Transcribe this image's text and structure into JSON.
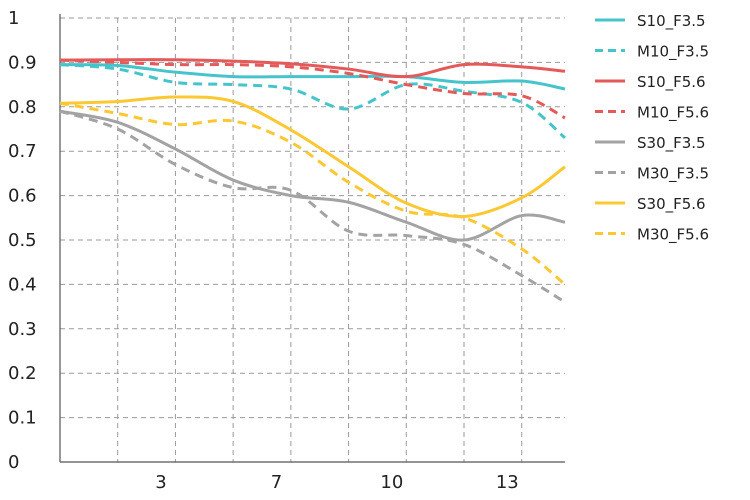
{
  "chart_data": {
    "type": "line",
    "title": "",
    "xlabel": "",
    "ylabel": "",
    "xlim": [
      0,
      17.5
    ],
    "ylim": [
      0,
      1
    ],
    "x_ticks": [
      3,
      7,
      10,
      13
    ],
    "y_ticks": [
      0,
      0.1,
      0.2,
      0.3,
      0.4,
      0.5,
      0.6,
      0.7,
      0.8,
      0.9,
      1
    ],
    "y_tick_labels": [
      "0",
      "0.1",
      "0.2",
      "0.3",
      "0.4",
      "0.5",
      "0.6",
      "0.7",
      "0.8",
      "0.9",
      "1"
    ],
    "grid": true,
    "legend_position": "right",
    "x": [
      0,
      2,
      4,
      6,
      8,
      10,
      12,
      14,
      16,
      17.5
    ],
    "series": [
      {
        "name": "S10_F3.5",
        "color": "#45c4cc",
        "dash": "solid",
        "values": [
          0.895,
          0.893,
          0.878,
          0.868,
          0.868,
          0.868,
          0.868,
          0.855,
          0.858,
          0.84
        ]
      },
      {
        "name": "M10_F3.5",
        "color": "#45c4cc",
        "dash": "dashed",
        "values": [
          0.895,
          0.885,
          0.855,
          0.85,
          0.84,
          0.795,
          0.85,
          0.835,
          0.81,
          0.73
        ]
      },
      {
        "name": "S10_F5.6",
        "color": "#e45a5a",
        "dash": "solid",
        "values": [
          0.905,
          0.906,
          0.906,
          0.903,
          0.897,
          0.885,
          0.868,
          0.895,
          0.89,
          0.88
        ]
      },
      {
        "name": "M10_F5.6",
        "color": "#e45a5a",
        "dash": "dashed",
        "values": [
          0.905,
          0.9,
          0.895,
          0.895,
          0.89,
          0.875,
          0.85,
          0.83,
          0.825,
          0.775
        ]
      },
      {
        "name": "S30_F3.5",
        "color": "#a3a3a3",
        "dash": "solid",
        "values": [
          0.79,
          0.765,
          0.705,
          0.635,
          0.6,
          0.585,
          0.54,
          0.5,
          0.555,
          0.54
        ]
      },
      {
        "name": "M30_F3.5",
        "color": "#a3a3a3",
        "dash": "dashed",
        "values": [
          0.79,
          0.75,
          0.67,
          0.618,
          0.612,
          0.52,
          0.51,
          0.49,
          0.42,
          0.36
        ]
      },
      {
        "name": "S30_F5.6",
        "color": "#fac832",
        "dash": "solid",
        "values": [
          0.808,
          0.812,
          0.822,
          0.812,
          0.748,
          0.665,
          0.583,
          0.553,
          0.595,
          0.665
        ]
      },
      {
        "name": "M30_F5.6",
        "color": "#fac832",
        "dash": "dashed",
        "values": [
          0.808,
          0.785,
          0.76,
          0.768,
          0.72,
          0.63,
          0.565,
          0.55,
          0.48,
          0.4
        ]
      }
    ]
  },
  "legend": {
    "items": [
      {
        "label": "S10_F3.5"
      },
      {
        "label": "M10_F3.5"
      },
      {
        "label": "S10_F5.6"
      },
      {
        "label": "M10_F5.6"
      },
      {
        "label": "S30_F3.5"
      },
      {
        "label": "M30_F3.5"
      },
      {
        "label": "S30_F5.6"
      },
      {
        "label": "M30_F5.6"
      }
    ]
  }
}
